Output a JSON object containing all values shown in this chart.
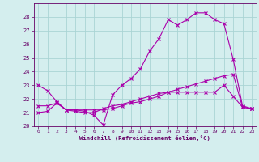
{
  "title": "",
  "xlabel": "Windchill (Refroidissement éolien,°C)",
  "background_color": "#d4eeee",
  "grid_color": "#aad4d4",
  "line_color": "#aa00aa",
  "xlim": [
    -0.5,
    23.5
  ],
  "ylim": [
    20,
    29
  ],
  "yticks": [
    20,
    21,
    22,
    23,
    24,
    25,
    26,
    27,
    28
  ],
  "xticks": [
    0,
    1,
    2,
    3,
    4,
    5,
    6,
    7,
    8,
    9,
    10,
    11,
    12,
    13,
    14,
    15,
    16,
    17,
    18,
    19,
    20,
    21,
    22,
    23
  ],
  "series": [
    {
      "x": [
        0,
        1,
        2,
        3,
        4,
        5,
        6,
        7,
        8,
        9,
        10,
        11,
        12,
        13,
        14,
        15,
        16,
        17,
        18,
        19,
        20,
        21,
        22,
        23
      ],
      "y": [
        23.0,
        22.6,
        21.8,
        21.2,
        21.2,
        21.1,
        20.8,
        20.1,
        22.3,
        23.0,
        23.5,
        24.2,
        25.5,
        26.4,
        27.8,
        27.4,
        27.8,
        28.3,
        28.3,
        27.8,
        27.5,
        24.9,
        21.5,
        21.3
      ],
      "marker": "x",
      "markersize": 3
    },
    {
      "x": [
        0,
        1,
        2,
        3,
        4,
        5,
        6,
        7,
        8,
        9,
        10,
        11,
        12,
        13,
        14,
        15,
        16,
        17,
        18,
        19,
        20,
        21,
        22,
        23
      ],
      "y": [
        21.0,
        21.1,
        21.7,
        21.2,
        21.2,
        21.2,
        21.2,
        21.2,
        21.3,
        21.5,
        21.7,
        21.8,
        22.0,
        22.2,
        22.5,
        22.7,
        22.9,
        23.1,
        23.3,
        23.5,
        23.7,
        23.8,
        21.4,
        21.3
      ],
      "marker": "x",
      "markersize": 3
    },
    {
      "x": [
        0,
        1,
        2,
        3,
        4,
        5,
        6,
        7,
        8,
        9,
        10,
        11,
        12,
        13,
        14,
        15,
        16,
        17,
        18,
        19,
        20,
        21,
        22,
        23
      ],
      "y": [
        21.5,
        21.5,
        21.7,
        21.2,
        21.1,
        21.0,
        21.0,
        21.3,
        21.5,
        21.6,
        21.8,
        22.0,
        22.2,
        22.4,
        22.5,
        22.5,
        22.5,
        22.5,
        22.5,
        22.5,
        23.0,
        22.2,
        21.4,
        21.3
      ],
      "marker": "x",
      "markersize": 3
    }
  ]
}
